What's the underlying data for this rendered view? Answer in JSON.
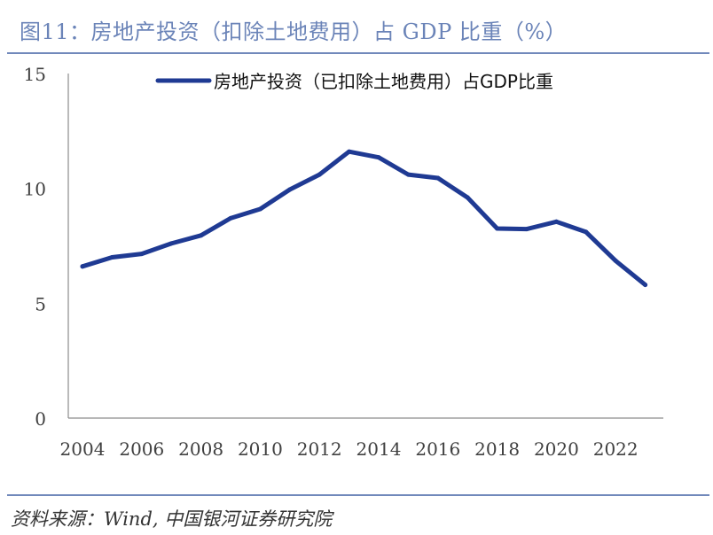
{
  "figure": {
    "title": "图11：房地产投资（扣除土地费用）占 GDP 比重（%）",
    "source": "资料来源：Wind,  中国银河证券研究院"
  },
  "colors": {
    "line": "#1f3a93",
    "title": "#6b84b8",
    "rule": "#7189bb",
    "axis": "#8c8c8c"
  },
  "chart_data": {
    "type": "line",
    "title": "图11：房地产投资（扣除土地费用）占 GDP 比重（%）",
    "xlabel": "",
    "ylabel": "",
    "x": [
      2004,
      2005,
      2006,
      2007,
      2008,
      2009,
      2010,
      2011,
      2012,
      2013,
      2014,
      2015,
      2016,
      2017,
      2018,
      2019,
      2020,
      2021,
      2022,
      2023
    ],
    "x_tick_labels": [
      "2004",
      "2006",
      "2008",
      "2010",
      "2012",
      "2014",
      "2016",
      "2018",
      "2020",
      "2022"
    ],
    "y_tick_labels": [
      "0",
      "5",
      "10",
      "15"
    ],
    "ylim": [
      0,
      15
    ],
    "grid": false,
    "legend_position": "top",
    "series": [
      {
        "name": "房地产投资（已扣除土地费用）占GDP比重",
        "values": [
          6.6,
          7.0,
          7.15,
          7.6,
          7.95,
          8.7,
          9.1,
          9.95,
          10.6,
          11.6,
          11.35,
          10.6,
          10.45,
          9.6,
          8.25,
          8.23,
          8.55,
          8.1,
          6.85,
          5.8
        ]
      }
    ]
  }
}
